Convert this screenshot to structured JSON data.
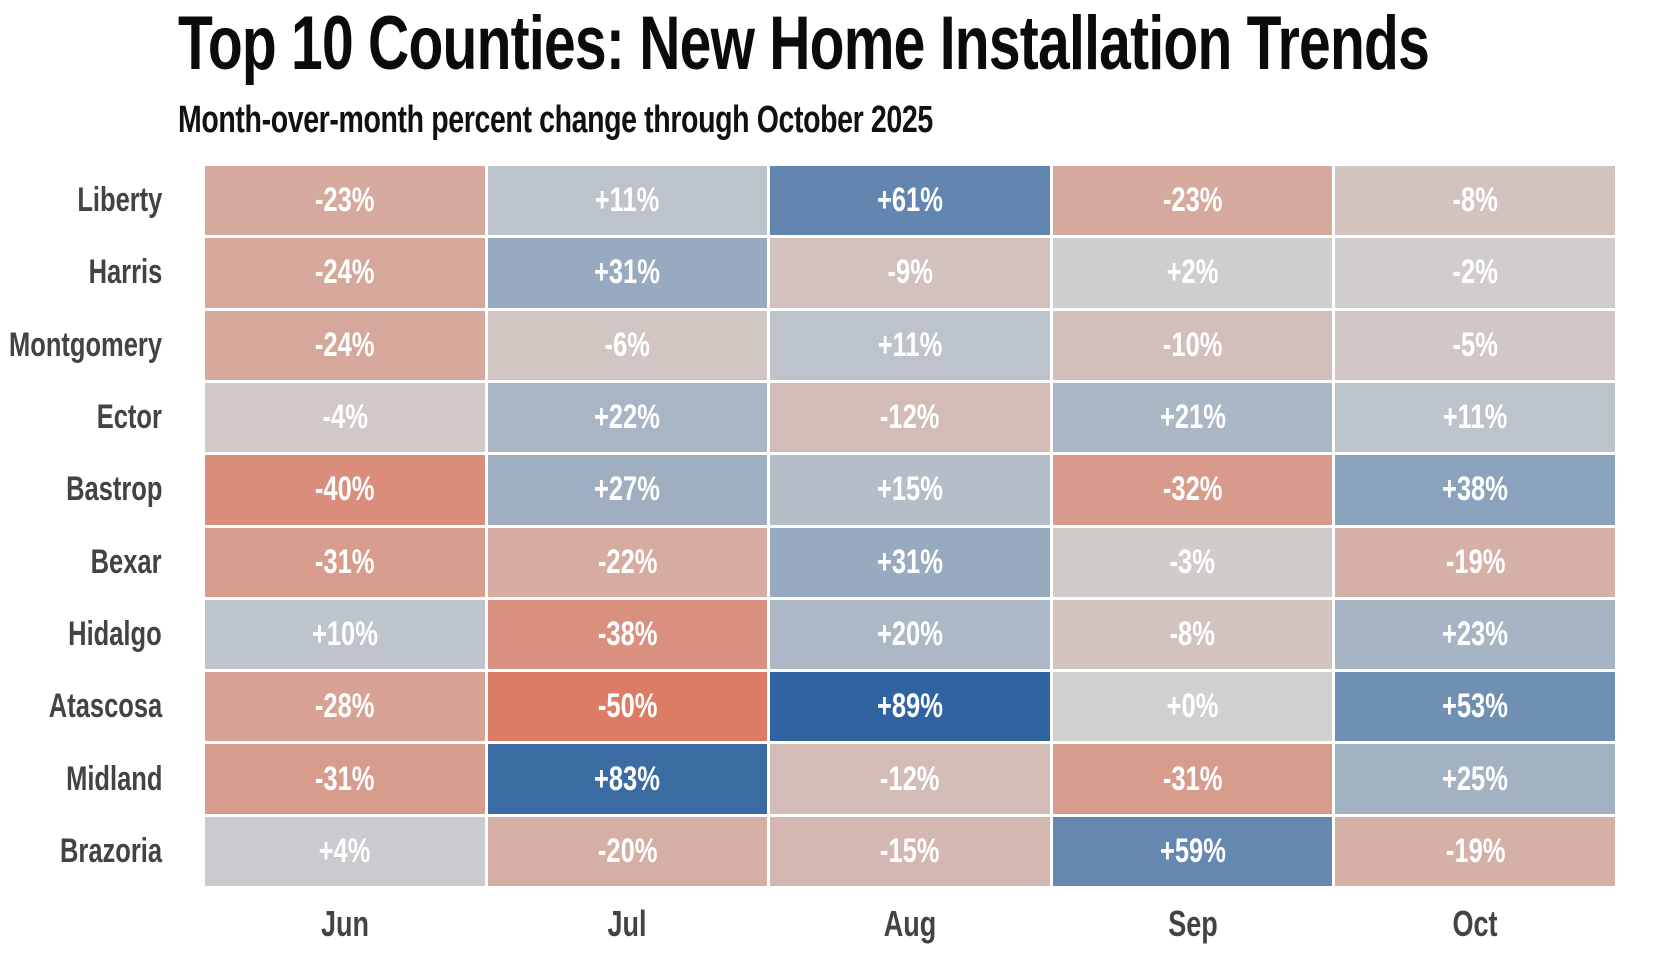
{
  "chart_data": {
    "type": "heatmap",
    "title": "Top 10 Counties: New Home Installation Trends",
    "subtitle": "Month-over-month percent change through October 2025",
    "columns": [
      "Jun",
      "Jul",
      "Aug",
      "Sep",
      "Oct"
    ],
    "rows": [
      "Liberty",
      "Harris",
      "Montgomery",
      "Ector",
      "Bastrop",
      "Bexar",
      "Hidalgo",
      "Atascosa",
      "Midland",
      "Brazoria"
    ],
    "values": [
      [
        -23,
        11,
        61,
        -23,
        -8
      ],
      [
        -24,
        31,
        -9,
        2,
        -2
      ],
      [
        -24,
        -6,
        11,
        -10,
        -5
      ],
      [
        -4,
        22,
        -12,
        21,
        11
      ],
      [
        -40,
        27,
        15,
        -32,
        38
      ],
      [
        -31,
        -22,
        31,
        -3,
        -19
      ],
      [
        10,
        -38,
        20,
        -8,
        23
      ],
      [
        -28,
        -50,
        89,
        0,
        53
      ],
      [
        -31,
        83,
        -12,
        -31,
        25
      ],
      [
        4,
        -20,
        -15,
        59,
        -19
      ]
    ],
    "labels": [
      [
        "-23%",
        "+11%",
        "+61%",
        "-23%",
        "-8%"
      ],
      [
        "-24%",
        "+31%",
        "-9%",
        "+2%",
        "-2%"
      ],
      [
        "-24%",
        "-6%",
        "+11%",
        "-10%",
        "-5%"
      ],
      [
        "-4%",
        "+22%",
        "-12%",
        "+21%",
        "+11%"
      ],
      [
        "-40%",
        "+27%",
        "+15%",
        "-32%",
        "+38%"
      ],
      [
        "-31%",
        "-22%",
        "+31%",
        "-3%",
        "-19%"
      ],
      [
        "+10%",
        "-38%",
        "+20%",
        "-8%",
        "+23%"
      ],
      [
        "-28%",
        "-50%",
        "+89%",
        "+0%",
        "+53%"
      ],
      [
        "-31%",
        "+83%",
        "-12%",
        "-31%",
        "+25%"
      ],
      [
        "+4%",
        "-20%",
        "-15%",
        "+59%",
        "-19%"
      ]
    ],
    "colormap": {
      "zero_color": "#d0d0d0",
      "negative_max_color": "#dd7c64",
      "positive_max_color": "#2f64a0",
      "negative_domain": [
        -50,
        0
      ],
      "positive_domain": [
        0,
        89
      ],
      "cell_text_color": "#ffffff"
    },
    "layout": {
      "legend": "none",
      "grid_gap_color": "#ffffff",
      "row_label_color": "#434343",
      "col_label_color": "#434343"
    }
  }
}
